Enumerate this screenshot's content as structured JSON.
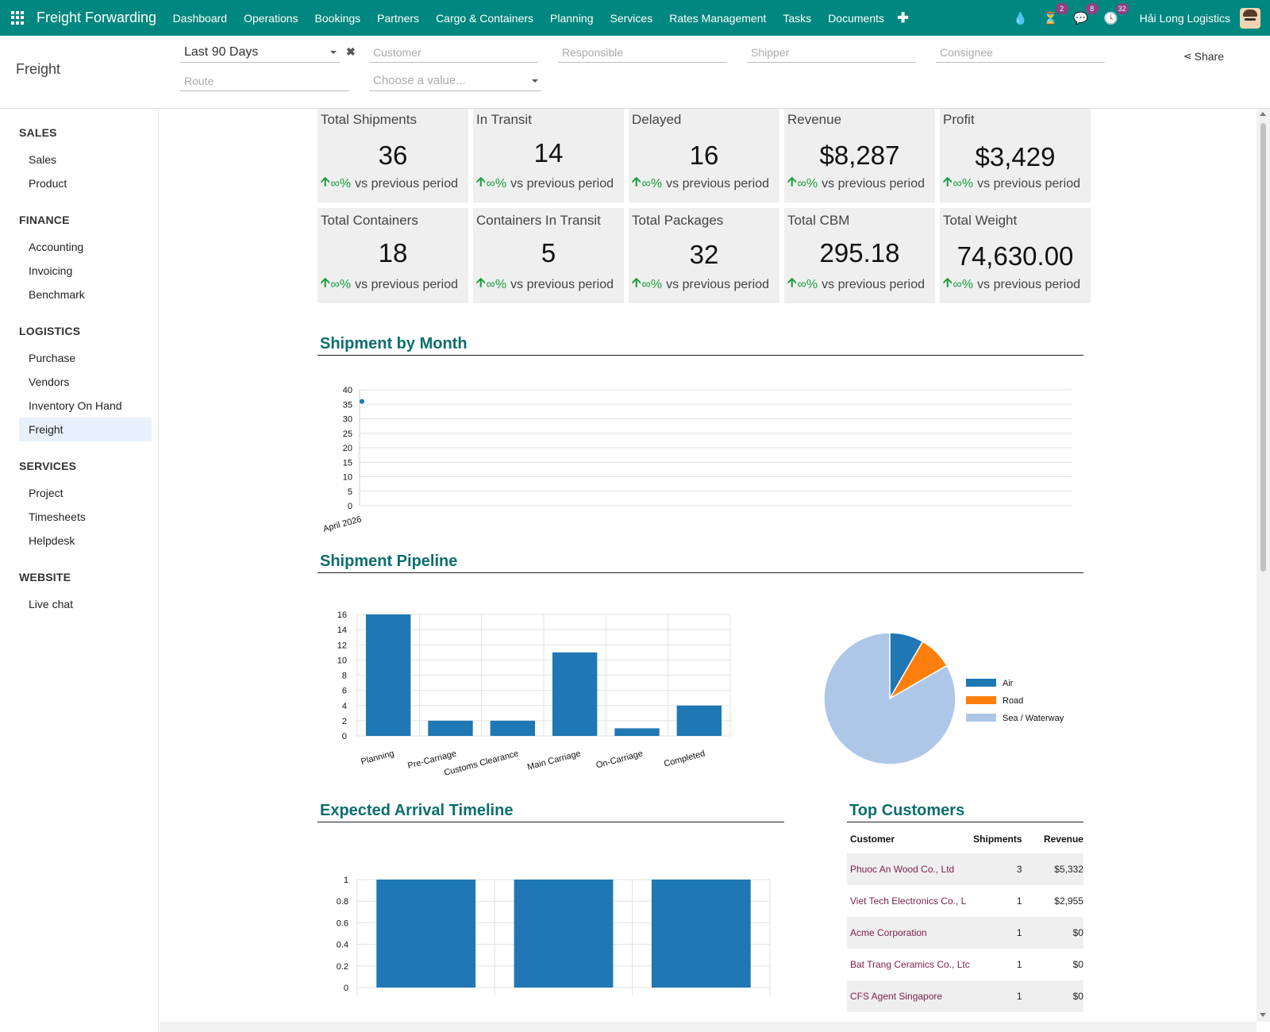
{
  "navbar": {
    "brand": "Freight Forwarding",
    "menu": [
      "Dashboard",
      "Operations",
      "Bookings",
      "Partners",
      "Cargo & Containers",
      "Planning",
      "Services",
      "Rates Management",
      "Tasks",
      "Documents"
    ],
    "plus": "✚",
    "icons": {
      "drop": {
        "name": "drop-icon",
        "glyph": "💧"
      },
      "activity": {
        "name": "hourglass-icon",
        "glyph": "⏳",
        "badge": "2"
      },
      "messages": {
        "name": "chat-icon",
        "glyph": "💬",
        "badge": "8"
      },
      "clock": {
        "name": "clock-icon",
        "glyph": "🕓",
        "badge": "32"
      }
    },
    "company": "Hải Long Logistics"
  },
  "control": {
    "page_title": "Freight",
    "filters": {
      "period": "Last 90 Days",
      "customer_placeholder": "Customer",
      "responsible_placeholder": "Responsible",
      "shipper_placeholder": "Shipper",
      "consignee_placeholder": "Consignee",
      "route_placeholder": "Route",
      "choose_placeholder": "Choose a value..."
    },
    "share_label": "Share",
    "clear_glyph": "✖",
    "share_glyph": "⋖"
  },
  "sidebar": {
    "sections": [
      {
        "title": "SALES",
        "items": [
          "Sales",
          "Product"
        ]
      },
      {
        "title": "FINANCE",
        "items": [
          "Accounting",
          "Invoicing",
          "Benchmark"
        ]
      },
      {
        "title": "LOGISTICS",
        "items": [
          "Purchase",
          "Vendors",
          "Inventory On Hand",
          "Freight"
        ]
      },
      {
        "title": "SERVICES",
        "items": [
          "Project",
          "Timesheets",
          "Helpdesk"
        ]
      },
      {
        "title": "WEBSITE",
        "items": [
          "Live chat"
        ]
      }
    ],
    "active": "Freight"
  },
  "kpis": [
    {
      "label": "Total Shipments",
      "value": "36",
      "trend": "∞%",
      "suffix": "vs previous period"
    },
    {
      "label": "In Transit",
      "value": "14",
      "trend": "∞%",
      "suffix": "vs previous period"
    },
    {
      "label": "Delayed",
      "value": "16",
      "trend": "∞%",
      "suffix": "vs previous period"
    },
    {
      "label": "Revenue",
      "value": "$8,287",
      "trend": "∞%",
      "suffix": "vs previous period"
    },
    {
      "label": "Profit",
      "value": "$3,429",
      "trend": "∞%",
      "suffix": "vs previous period"
    },
    {
      "label": "Total Containers",
      "value": "18",
      "trend": "∞%",
      "suffix": "vs previous period"
    },
    {
      "label": "Containers In Transit",
      "value": "5",
      "trend": "∞%",
      "suffix": "vs previous period"
    },
    {
      "label": "Total Packages",
      "value": "32",
      "trend": "∞%",
      "suffix": "vs previous period"
    },
    {
      "label": "Total CBM",
      "value": "295.18",
      "trend": "∞%",
      "suffix": "vs previous period"
    },
    {
      "label": "Total Weight",
      "value": "74,630.00",
      "trend": "∞%",
      "suffix": "vs previous period"
    }
  ],
  "sections": {
    "shipment_by_month": "Shipment by Month",
    "pipeline": "Shipment Pipeline",
    "arrival": "Expected Arrival Timeline",
    "top_customers": "Top Customers"
  },
  "chart_data": [
    {
      "type": "line",
      "title": "Shipment by Month",
      "x": [
        "April 2026"
      ],
      "series": [
        {
          "values": [
            36
          ]
        }
      ],
      "ylim": [
        0,
        40
      ],
      "yticks": [
        0,
        5,
        10,
        15,
        20,
        25,
        30,
        35,
        40
      ],
      "color": "#1f77b4",
      "grid": true
    },
    {
      "type": "bar",
      "title": "Shipment Pipeline",
      "categories": [
        "Planning",
        "Pre-Carriage",
        "Customs Clearance",
        "Main Carriage",
        "On-Carriage",
        "Completed"
      ],
      "values": [
        16,
        2,
        2,
        11,
        1,
        4
      ],
      "ylim": [
        0,
        16
      ],
      "yticks": [
        0,
        2,
        4,
        6,
        8,
        10,
        12,
        14,
        16
      ],
      "color": "#1f77b4",
      "grid": true
    },
    {
      "type": "pie",
      "categories": [
        "Air",
        "Road",
        "Sea / Waterway"
      ],
      "values": [
        3,
        3,
        30
      ],
      "colors": [
        "#1f77b4",
        "#ff7f0e",
        "#aec7e8"
      ],
      "legend": "right"
    },
    {
      "type": "bar",
      "title": "Expected Arrival Timeline",
      "categories": [
        "",
        "",
        ""
      ],
      "values": [
        1,
        1,
        1
      ],
      "ylim": [
        0,
        1
      ],
      "yticks": [
        "0",
        "0.2",
        "0.4",
        "0.6",
        "0.8",
        "1"
      ],
      "color": "#1f77b4",
      "grid": true
    }
  ],
  "top_customers": {
    "headers": [
      "Customer",
      "Shipments",
      "Revenue"
    ],
    "rows": [
      [
        "Phuoc An Wood Co., Ltd",
        "3",
        "$5,332"
      ],
      [
        "Viet Tech Electronics Co., L",
        "1",
        "$2,955"
      ],
      [
        "Acme Corporation",
        "1",
        "$0"
      ],
      [
        "Bat Trang Ceramics Co., Ltc",
        "1",
        "$0"
      ],
      [
        "CFS Agent Singapore",
        "1",
        "$0"
      ]
    ]
  }
}
